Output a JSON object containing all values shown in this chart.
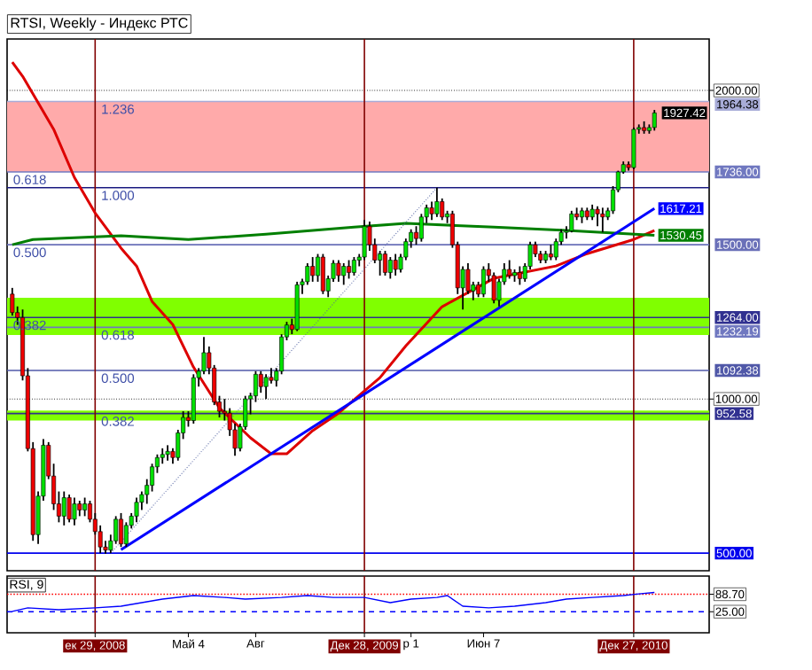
{
  "chart_data": [
    {
      "type": "candlestick",
      "title": "RTSI, Weekly - Индекс РТС",
      "tick_labels": "y",
      "grid": "y",
      "xlim": [
        "2008-09-01",
        "2011-04-08"
      ],
      "ylim": [
        443,
        2167
      ],
      "yticks": [
        {
          "value": 2000,
          "label": "2000.00"
        },
        {
          "value": 1000,
          "label": "1000.00"
        }
      ],
      "x": [
        "2008-09-08",
        "2008-09-15",
        "2008-09-22",
        "2008-09-29",
        "2008-10-06",
        "2008-10-13",
        "2008-10-20",
        "2008-10-27",
        "2008-11-03",
        "2008-11-10",
        "2008-11-17",
        "2008-11-24",
        "2008-12-01",
        "2008-12-08",
        "2008-12-15",
        "2008-12-22",
        "2008-12-29",
        "2009-01-05",
        "2009-01-12",
        "2009-01-19",
        "2009-01-26",
        "2009-02-02",
        "2009-02-09",
        "2009-02-16",
        "2009-02-23",
        "2009-03-02",
        "2009-03-09",
        "2009-03-16",
        "2009-03-23",
        "2009-03-30",
        "2009-04-06",
        "2009-04-13",
        "2009-04-20",
        "2009-04-27",
        "2009-05-04",
        "2009-05-11",
        "2009-05-18",
        "2009-05-25",
        "2009-06-01",
        "2009-06-08",
        "2009-06-15",
        "2009-06-22",
        "2009-06-29",
        "2009-07-06",
        "2009-07-13",
        "2009-07-20",
        "2009-07-27",
        "2009-08-03",
        "2009-08-10",
        "2009-08-17",
        "2009-08-24",
        "2009-08-31",
        "2009-09-07",
        "2009-09-14",
        "2009-09-21",
        "2009-09-28",
        "2009-10-05",
        "2009-10-12",
        "2009-10-19",
        "2009-10-26",
        "2009-11-02",
        "2009-11-09",
        "2009-11-16",
        "2009-11-23",
        "2009-11-30",
        "2009-12-07",
        "2009-12-14",
        "2009-12-21",
        "2009-12-28",
        "2010-01-04",
        "2010-01-11",
        "2010-01-18",
        "2010-01-25",
        "2010-02-01",
        "2010-02-08",
        "2010-02-15",
        "2010-02-22",
        "2010-03-01",
        "2010-03-08",
        "2010-03-15",
        "2010-03-22",
        "2010-03-29",
        "2010-04-05",
        "2010-04-12",
        "2010-04-19",
        "2010-04-26",
        "2010-05-03",
        "2010-05-10",
        "2010-05-17",
        "2010-05-24",
        "2010-05-31",
        "2010-06-07",
        "2010-06-14",
        "2010-06-21",
        "2010-06-28",
        "2010-07-05",
        "2010-07-12",
        "2010-07-19",
        "2010-07-26",
        "2010-08-02",
        "2010-08-09",
        "2010-08-16",
        "2010-08-23",
        "2010-08-30",
        "2010-09-06",
        "2010-09-13",
        "2010-09-20",
        "2010-09-27",
        "2010-10-04",
        "2010-10-11",
        "2010-10-18",
        "2010-10-25",
        "2010-11-01",
        "2010-11-08",
        "2010-11-15",
        "2010-11-22",
        "2010-11-29",
        "2010-12-06",
        "2010-12-13",
        "2010-12-20",
        "2010-12-27",
        "2011-01-03",
        "2011-01-10",
        "2011-01-17",
        "2011-01-24"
      ],
      "ohlc": [
        [
          1340,
          1360,
          1270,
          1280
        ],
        [
          1280,
          1300,
          1240,
          1264
        ],
        [
          1264,
          1290,
          1060,
          1075
        ],
        [
          1075,
          1100,
          830,
          839
        ],
        [
          839,
          860,
          540,
          560
        ],
        [
          560,
          700,
          530,
          685
        ],
        [
          685,
          870,
          670,
          850
        ],
        [
          850,
          860,
          740,
          750
        ],
        [
          750,
          790,
          640,
          660
        ],
        [
          660,
          700,
          600,
          620
        ],
        [
          620,
          700,
          590,
          680
        ],
        [
          680,
          690,
          600,
          610
        ],
        [
          610,
          680,
          590,
          660
        ],
        [
          660,
          670,
          620,
          640
        ],
        [
          640,
          680,
          620,
          660
        ],
        [
          660,
          670,
          600,
          610
        ],
        [
          610,
          630,
          560,
          570
        ],
        [
          570,
          590,
          500,
          520
        ],
        [
          520,
          540,
          498,
          510
        ],
        [
          510,
          560,
          500,
          540
        ],
        [
          540,
          620,
          530,
          610
        ],
        [
          610,
          630,
          520,
          530
        ],
        [
          530,
          600,
          520,
          590
        ],
        [
          590,
          630,
          580,
          620
        ],
        [
          620,
          680,
          600,
          665
        ],
        [
          665,
          700,
          640,
          690
        ],
        [
          690,
          740,
          660,
          720
        ],
        [
          720,
          790,
          700,
          780
        ],
        [
          780,
          820,
          760,
          810
        ],
        [
          810,
          840,
          790,
          820
        ],
        [
          820,
          850,
          800,
          830
        ],
        [
          830,
          840,
          790,
          810
        ],
        [
          810,
          900,
          800,
          890
        ],
        [
          890,
          960,
          870,
          940
        ],
        [
          940,
          960,
          910,
          930
        ],
        [
          930,
          1080,
          920,
          1069
        ],
        [
          1069,
          1100,
          1040,
          1090
        ],
        [
          1090,
          1201,
          1080,
          1150
        ],
        [
          1150,
          1170,
          1080,
          1100
        ],
        [
          1100,
          1110,
          980,
          990
        ],
        [
          990,
          1010,
          940,
          960
        ],
        [
          960,
          1000,
          930,
          954
        ],
        [
          954,
          970,
          880,
          900
        ],
        [
          900,
          920,
          816,
          840
        ],
        [
          840,
          920,
          830,
          910
        ],
        [
          910,
          1010,
          900,
          1000
        ],
        [
          1000,
          1020,
          950,
          1010
        ],
        [
          1010,
          1090,
          990,
          1080
        ],
        [
          1080,
          1090,
          1020,
          1040
        ],
        [
          1040,
          1080,
          1000,
          1070
        ],
        [
          1070,
          1100,
          1050,
          1060
        ],
        [
          1060,
          1100,
          1040,
          1090
        ],
        [
          1090,
          1210,
          1080,
          1201
        ],
        [
          1201,
          1250,
          1190,
          1240
        ],
        [
          1240,
          1260,
          1210,
          1225
        ],
        [
          1225,
          1380,
          1220,
          1370
        ],
        [
          1370,
          1390,
          1340,
          1380
        ],
        [
          1380,
          1440,
          1370,
          1430
        ],
        [
          1430,
          1460,
          1380,
          1400
        ],
        [
          1400,
          1470,
          1380,
          1460
        ],
        [
          1460,
          1470,
          1340,
          1350
        ],
        [
          1350,
          1400,
          1330,
          1390
        ],
        [
          1390,
          1450,
          1380,
          1440
        ],
        [
          1440,
          1450,
          1380,
          1400
        ],
        [
          1400,
          1440,
          1370,
          1430
        ],
        [
          1430,
          1450,
          1390,
          1410
        ],
        [
          1410,
          1460,
          1400,
          1450
        ],
        [
          1450,
          1470,
          1430,
          1460
        ],
        [
          1460,
          1580,
          1450,
          1560
        ],
        [
          1560,
          1575,
          1480,
          1500
        ],
        [
          1500,
          1520,
          1440,
          1450
        ],
        [
          1450,
          1480,
          1400,
          1470
        ],
        [
          1470,
          1480,
          1400,
          1410
        ],
        [
          1410,
          1460,
          1390,
          1450
        ],
        [
          1450,
          1470,
          1400,
          1420
        ],
        [
          1420,
          1470,
          1410,
          1460
        ],
        [
          1460,
          1520,
          1450,
          1510
        ],
        [
          1510,
          1550,
          1490,
          1540
        ],
        [
          1540,
          1560,
          1500,
          1520
        ],
        [
          1520,
          1600,
          1510,
          1590
        ],
        [
          1590,
          1630,
          1570,
          1620
        ],
        [
          1620,
          1640,
          1580,
          1600
        ],
        [
          1600,
          1685,
          1590,
          1640
        ],
        [
          1640,
          1650,
          1580,
          1590
        ],
        [
          1590,
          1610,
          1570,
          1600
        ],
        [
          1600,
          1610,
          1490,
          1500
        ],
        [
          1500,
          1510,
          1340,
          1360
        ],
        [
          1360,
          1430,
          1290,
          1420
        ],
        [
          1420,
          1440,
          1340,
          1350
        ],
        [
          1350,
          1380,
          1320,
          1370
        ],
        [
          1370,
          1380,
          1330,
          1340
        ],
        [
          1340,
          1430,
          1330,
          1420
        ],
        [
          1420,
          1440,
          1380,
          1400
        ],
        [
          1400,
          1410,
          1310,
          1320
        ],
        [
          1320,
          1390,
          1300,
          1380
        ],
        [
          1380,
          1440,
          1370,
          1420
        ],
        [
          1420,
          1450,
          1390,
          1400
        ],
        [
          1400,
          1420,
          1380,
          1410
        ],
        [
          1410,
          1430,
          1370,
          1390
        ],
        [
          1390,
          1440,
          1380,
          1430
        ],
        [
          1430,
          1510,
          1420,
          1500
        ],
        [
          1500,
          1510,
          1460,
          1470
        ],
        [
          1470,
          1480,
          1440,
          1450
        ],
        [
          1450,
          1480,
          1440,
          1470
        ],
        [
          1470,
          1500,
          1450,
          1460
        ],
        [
          1460,
          1520,
          1450,
          1510
        ],
        [
          1510,
          1550,
          1500,
          1540
        ],
        [
          1540,
          1560,
          1520,
          1545
        ],
        [
          1545,
          1610,
          1540,
          1600
        ],
        [
          1600,
          1620,
          1580,
          1590
        ],
        [
          1590,
          1620,
          1570,
          1610
        ],
        [
          1610,
          1620,
          1580,
          1590
        ],
        [
          1590,
          1630,
          1580,
          1615
        ],
        [
          1615,
          1625,
          1560,
          1600
        ],
        [
          1600,
          1620,
          1540,
          1590
        ],
        [
          1590,
          1620,
          1580,
          1610
        ],
        [
          1610,
          1690,
          1600,
          1678
        ],
        [
          1678,
          1740,
          1670,
          1736
        ],
        [
          1736,
          1770,
          1730,
          1760
        ],
        [
          1760,
          1770,
          1740,
          1750
        ],
        [
          1750,
          1880,
          1745,
          1874
        ],
        [
          1874,
          1890,
          1860,
          1880
        ],
        [
          1880,
          1900,
          1860,
          1870
        ],
        [
          1870,
          1890,
          1860,
          1880
        ],
        [
          1880,
          1937,
          1870,
          1927.42
        ]
      ],
      "colors": [
        "#ee0000",
        "#ee0000",
        "#ee0000",
        "#ee0000",
        "#ee0000",
        "#00e000",
        "#00e000",
        "#ee0000",
        "#ee0000",
        "#ee0000",
        "#00e000",
        "#ee0000",
        "#00e000",
        "#ee0000",
        "#00e000",
        "#ee0000",
        "#ee0000",
        "#ee0000",
        "#ee0000",
        "#00e000",
        "#00e000",
        "#ee0000",
        "#00e000",
        "#00e000",
        "#00e000",
        "#00e000",
        "#00e000",
        "#00e000",
        "#00e000",
        "#00e000",
        "#00e000",
        "#ee0000",
        "#00e000",
        "#00e000",
        "#ee0000",
        "#00e000",
        "#00e000",
        "#00e000",
        "#ee0000",
        "#ee0000",
        "#ee0000",
        "#ee0000",
        "#ee0000",
        "#ee0000",
        "#00e000",
        "#00e000",
        "#00e000",
        "#00e000",
        "#ee0000",
        "#00e000",
        "#ee0000",
        "#00e000",
        "#00e000",
        "#00e000",
        "#ee0000",
        "#00e000",
        "#00e000",
        "#00e000",
        "#ee0000",
        "#00e000",
        "#ee0000",
        "#00e000",
        "#00e000",
        "#ee0000",
        "#00e000",
        "#ee0000",
        "#00e000",
        "#00e000",
        "#00e000",
        "#ee0000",
        "#ee0000",
        "#00e000",
        "#ee0000",
        "#00e000",
        "#ee0000",
        "#00e000",
        "#00e000",
        "#00e000",
        "#ee0000",
        "#00e000",
        "#00e000",
        "#ee0000",
        "#00e000",
        "#ee0000",
        "#00e000",
        "#ee0000",
        "#ee0000",
        "#00e000",
        "#ee0000",
        "#00e000",
        "#ee0000",
        "#00e000",
        "#ee0000",
        "#ee0000",
        "#00e000",
        "#00e000",
        "#ee0000",
        "#00e000",
        "#ee0000",
        "#00e000",
        "#00e000",
        "#ee0000",
        "#ee0000",
        "#00e000",
        "#ee0000",
        "#00e000",
        "#00e000",
        "#00e000",
        "#00e000",
        "#ee0000",
        "#00e000",
        "#ee0000",
        "#00e000",
        "#ee0000",
        "#ee0000",
        "#00e000",
        "#00e000",
        "#00e000",
        "#00e000",
        "#ee0000",
        "#00e000",
        "#00e000",
        "#ee0000",
        "#00e000",
        "#00e000"
      ],
      "bands": [
        {
          "axis": "y",
          "from": 1736,
          "to": 1964.38,
          "color": "#ffaaaa"
        },
        {
          "axis": "y",
          "from": 1207,
          "to": 1328,
          "color": "#80ff00"
        },
        {
          "axis": "y",
          "from": 930,
          "to": 962,
          "color": "#80ff00"
        }
      ],
      "ref_lines": [
        {
          "axis": "y",
          "value": 1964.38,
          "label": "1964.38",
          "color": "#a8acd8"
        },
        {
          "axis": "y",
          "value": 1736,
          "label": "1736.00",
          "color": "#7078c0"
        },
        {
          "axis": "y",
          "value": 1684.77,
          "color": "#1a1a80"
        },
        {
          "axis": "y",
          "value": 1500,
          "label": "1500.00",
          "color": "#6a70b8"
        },
        {
          "axis": "y",
          "value": 1264,
          "label": "1264.00",
          "color": "#303090"
        },
        {
          "axis": "y",
          "value": 1232.19,
          "label": "1232.19",
          "color": "#7078c0"
        },
        {
          "axis": "y",
          "value": 1092.38,
          "label": "1092.38",
          "color": "#5058a8"
        },
        {
          "axis": "y",
          "value": 952.58,
          "label": "952.58",
          "color": "#303090"
        },
        {
          "axis": "y",
          "value": 500,
          "label": "500.00",
          "color": "#0000ee"
        },
        {
          "axis": "x",
          "value": "2008-12-29",
          "color": "#800000"
        },
        {
          "axis": "x",
          "value": "2009-12-28",
          "color": "#800000"
        },
        {
          "axis": "x",
          "value": "2010-12-27",
          "color": "#800000"
        }
      ],
      "annotations": [
        {
          "text": "1.236",
          "x": "2009-01-05",
          "y": 1964.38
        },
        {
          "text": "0.618",
          "x": "2008-09-08",
          "y": 1736
        },
        {
          "text": "1.000",
          "x": "2009-01-05",
          "y": 1684.77
        },
        {
          "text": "0.500",
          "x": "2008-09-08",
          "y": 1500
        },
        {
          "text": "0.382",
          "x": "2008-09-08",
          "y": 1264
        },
        {
          "text": "0.618",
          "x": "2009-01-05",
          "y": 1232.19
        },
        {
          "text": "0.500",
          "x": "2009-01-05",
          "y": 1092.38
        },
        {
          "text": "0.382",
          "x": "2009-01-05",
          "y": 952.58
        },
        {
          "text": "1927.42",
          "x": "2011-01-24",
          "y": 1927.42
        }
      ],
      "series": [
        {
          "type": "line",
          "color": "#dd0000",
          "x": [
            "2008-09-08",
            "2008-09-22",
            "2008-11-03",
            "2008-12-01",
            "2008-12-29",
            "2009-02-02",
            "2009-02-23",
            "2009-03-16",
            "2009-04-13",
            "2009-05-11",
            "2009-06-15",
            "2009-07-27",
            "2009-08-24",
            "2009-09-14",
            "2009-10-19",
            "2009-11-23",
            "2010-01-18",
            "2010-02-22",
            "2010-04-12",
            "2010-06-21",
            "2010-09-13",
            "2010-10-25",
            "2010-12-27",
            "2011-01-24"
          ],
          "values": [
            2092,
            2046,
            1874,
            1718,
            1603,
            1489,
            1431,
            1316,
            1241,
            1103,
            971,
            874,
            822,
            822,
            897,
            954,
            1069,
            1172,
            1299,
            1391,
            1431,
            1471,
            1517,
            1546
          ]
        },
        {
          "type": "line",
          "color": "#007f00",
          "x": [
            "2008-09-08",
            "2008-10-06",
            "2009-02-02",
            "2009-05-04",
            "2009-08-17",
            "2009-12-14",
            "2010-02-22",
            "2010-06-21",
            "2010-09-27",
            "2011-01-24"
          ],
          "values": [
            1500,
            1517,
            1529,
            1517,
            1534,
            1557,
            1569,
            1557,
            1546,
            1530.45
          ],
          "value_labels": [
            null,
            null,
            null,
            null,
            null,
            null,
            null,
            null,
            null,
            "1530.45"
          ]
        },
        {
          "type": "line",
          "color": "#0000ff",
          "x": [
            "2009-02-02",
            "2011-01-24"
          ],
          "values": [
            511,
            1617.21
          ],
          "value_labels": [
            null,
            "1617.21"
          ]
        },
        {
          "type": "line",
          "color": "#5060a0",
          "line_style": "dotted",
          "x": [
            "2009-01-19",
            "2010-04-05"
          ],
          "values": [
            500,
            1684.77
          ]
        }
      ]
    },
    {
      "type": "line",
      "title": "RSI, 9",
      "color": "#0000ff",
      "xlim": [
        "2008-09-01",
        "2011-04-08"
      ],
      "ylim": [
        -52,
        155
      ],
      "yticks": [
        {
          "value": 88.7,
          "label": "88.70"
        },
        {
          "value": 25,
          "label": "25.00"
        }
      ],
      "xticks": [
        {
          "value": "2008-12-29",
          "label": "ек 29, 2008"
        },
        {
          "value": "2009-05-04",
          "label": "Май 4"
        },
        {
          "value": "2009-08-03",
          "label": "Авг"
        },
        {
          "value": "2009-12-28",
          "label": "Дек 28, 2009"
        },
        {
          "value": "2010-03-01",
          "label": "р 1"
        },
        {
          "value": "2010-06-07",
          "label": "Июн 7"
        },
        {
          "value": "2010-12-27",
          "label": "Дек 27, 2010"
        }
      ],
      "x": [
        "2008-09-08",
        "2008-09-29",
        "2008-11-10",
        "2008-12-29",
        "2009-02-02",
        "2009-03-02",
        "2009-03-30",
        "2009-05-11",
        "2009-06-22",
        "2009-07-20",
        "2009-09-07",
        "2009-10-12",
        "2009-11-16",
        "2009-12-28",
        "2010-02-01",
        "2010-03-01",
        "2010-04-05",
        "2010-04-19",
        "2010-05-10",
        "2010-06-14",
        "2010-07-19",
        "2010-08-30",
        "2010-09-27",
        "2010-11-01",
        "2010-12-13",
        "2011-01-03",
        "2011-01-24"
      ],
      "values": [
        26,
        39,
        32,
        39,
        45,
        58,
        71,
        84,
        77,
        71,
        77,
        84,
        77,
        77,
        58,
        71,
        77,
        84,
        45,
        39,
        45,
        58,
        71,
        77,
        84,
        90,
        95
      ],
      "ref_lines": [
        {
          "axis": "y",
          "value": 88.7,
          "color": "#ff0000",
          "line_style": "dotted"
        },
        {
          "axis": "y",
          "value": 25,
          "color": "#0000ff",
          "line_style": "dashed"
        },
        {
          "axis": "x",
          "value": "2008-12-29",
          "color": "#800000"
        },
        {
          "axis": "x",
          "value": "2009-12-28",
          "color": "#800000"
        },
        {
          "axis": "x",
          "value": "2010-12-27",
          "color": "#800000"
        }
      ]
    }
  ]
}
